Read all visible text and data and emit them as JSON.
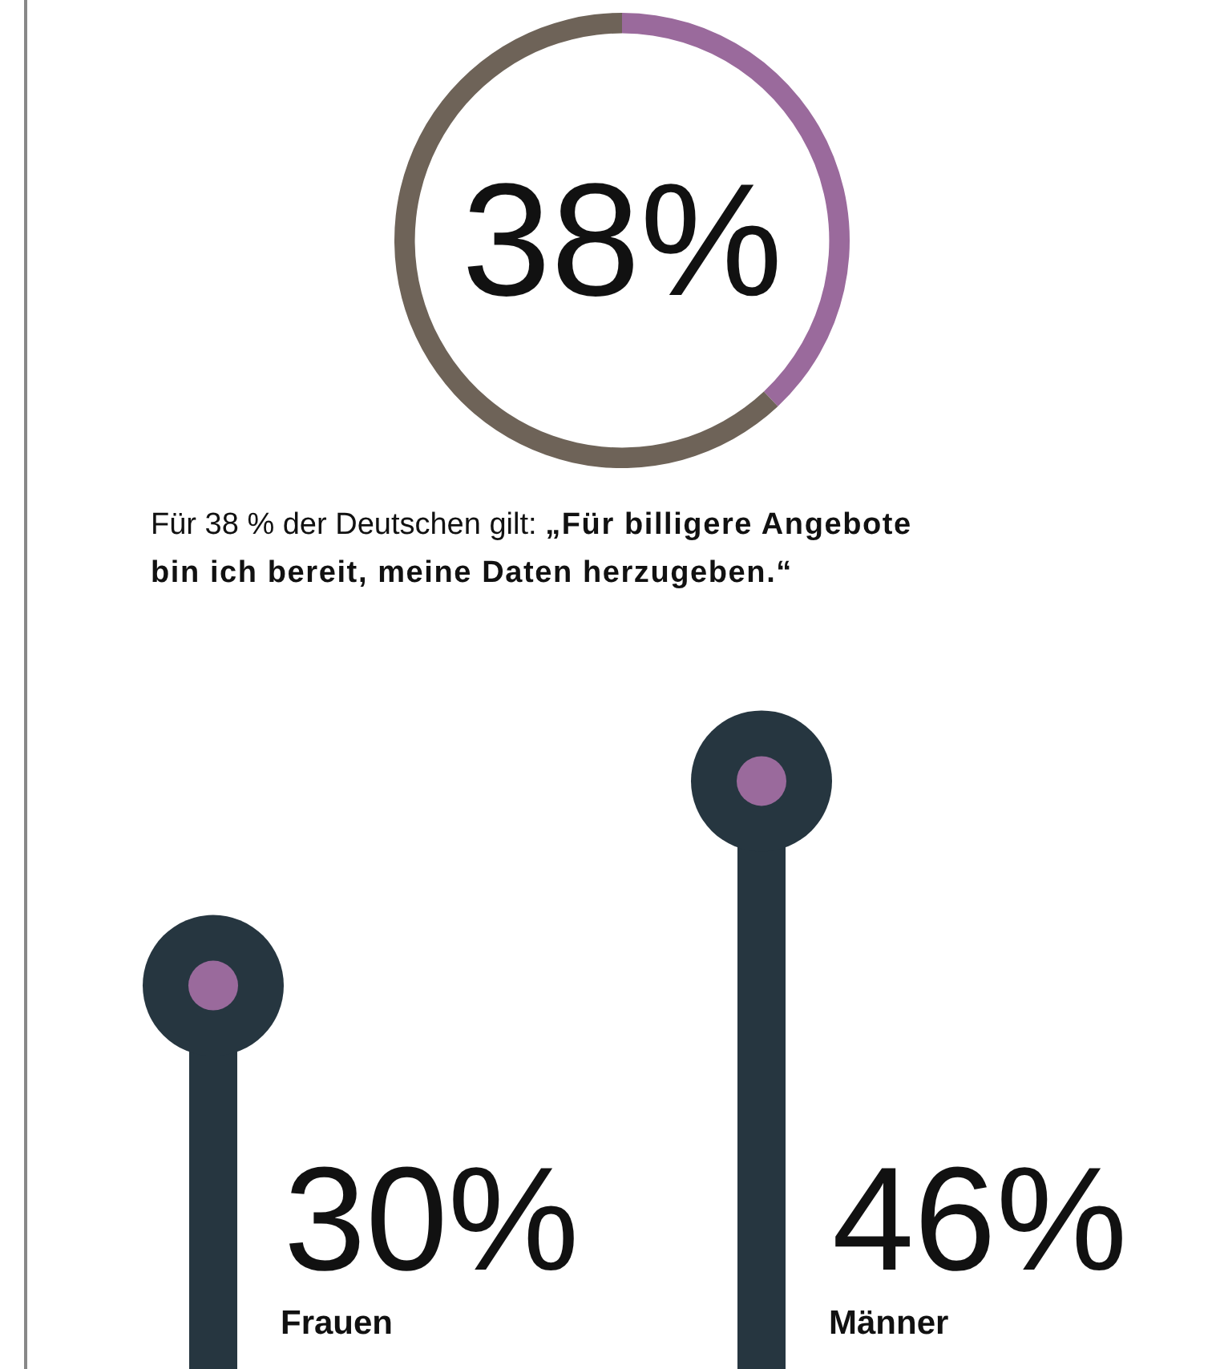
{
  "chart_data": [
    {
      "type": "donut",
      "categories": [
        null,
        null
      ],
      "values": [
        38,
        62
      ],
      "colors": [
        "#9a6a9c",
        "#6e6358"
      ],
      "value_labels": [
        "38%",
        null
      ],
      "annotations": [
        "Für 38 % der Deutschen gilt:",
        "„Für billigere Angebote bin ich bereit, meine Daten herzugeben.“"
      ]
    },
    {
      "type": "lollipop",
      "categories": [
        "Frauen",
        "Männer"
      ],
      "values": [
        30,
        46
      ],
      "color": "#263640",
      "value_labels": [
        "30%",
        "46%"
      ]
    }
  ]
}
